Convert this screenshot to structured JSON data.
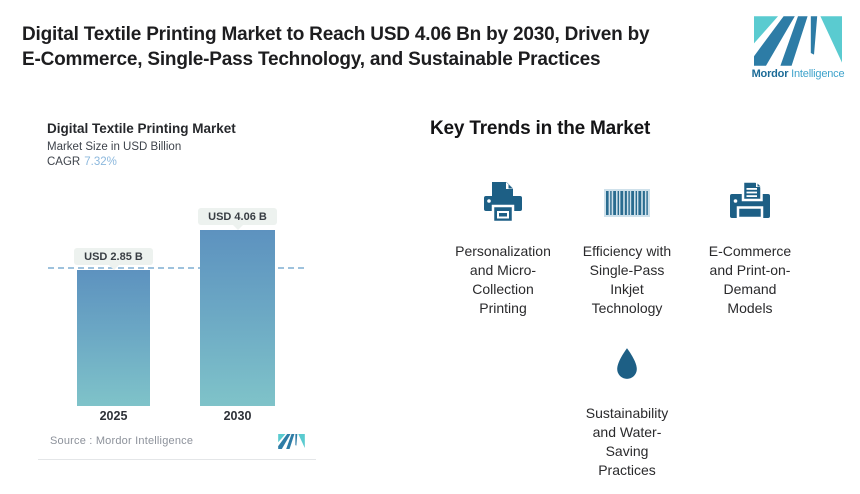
{
  "header": {
    "title_line1": "Digital Textile Printing Market to Reach USD 4.06 Bn by 2030, Driven by",
    "title_line2": "E-Commerce, Single-Pass Technology, and Sustainable Practices",
    "brand_bold": "Mordor",
    "brand_light": "Intelligence"
  },
  "chart": {
    "title": "Digital Textile Printing Market",
    "subtitle": "Market Size in USD Billion",
    "cagr_label": "CAGR",
    "cagr_value": "7.32%",
    "source_text": "Source :  Mordor Intelligence",
    "bars": [
      {
        "year": "2025",
        "label": "USD 2.85 B"
      },
      {
        "year": "2030",
        "label": "USD 4.06 B"
      }
    ]
  },
  "chart_data": {
    "type": "bar",
    "title": "Digital Textile Printing Market",
    "subtitle": "Market Size in USD Billion",
    "cagr_percent": 7.32,
    "categories": [
      "2025",
      "2030"
    ],
    "values": [
      2.85,
      4.06
    ],
    "value_labels": [
      "USD 2.85 B",
      "USD 4.06 B"
    ],
    "unit": "USD Billion",
    "ylim": [
      0,
      4.3
    ],
    "reference_line_y": 2.85,
    "grid": false,
    "legend": "none",
    "source": "Mordor Intelligence"
  },
  "trends": {
    "heading": "Key Trends in the Market",
    "items": [
      {
        "icon": "printer-icon",
        "label": "Personalization\nand Micro-\nCollection\nPrinting"
      },
      {
        "icon": "barcode-icon",
        "label": "Efficiency with\nSingle-Pass\nInkjet\nTechnology"
      },
      {
        "icon": "ecommerce-printer-icon",
        "label": "E-Commerce\nand Print-on-\nDemand\nModels"
      },
      {
        "icon": "water-drop-icon",
        "label": "Sustainability\nand Water-\nSaving\nPractices"
      }
    ]
  },
  "colors": {
    "icon_teal": "#1d5f85",
    "bar_gradient_top": "#5d92bf",
    "bar_gradient_bottom": "#7fc3c9",
    "dashed_line": "#9ec2dd",
    "cagr_value": "#8cb8dd",
    "logo_dark_blue": "#2d7ca6",
    "logo_teal": "#5acbd0",
    "value_pill_bg": "#edf2ef",
    "barcode_bg": "#cfe1eb"
  }
}
